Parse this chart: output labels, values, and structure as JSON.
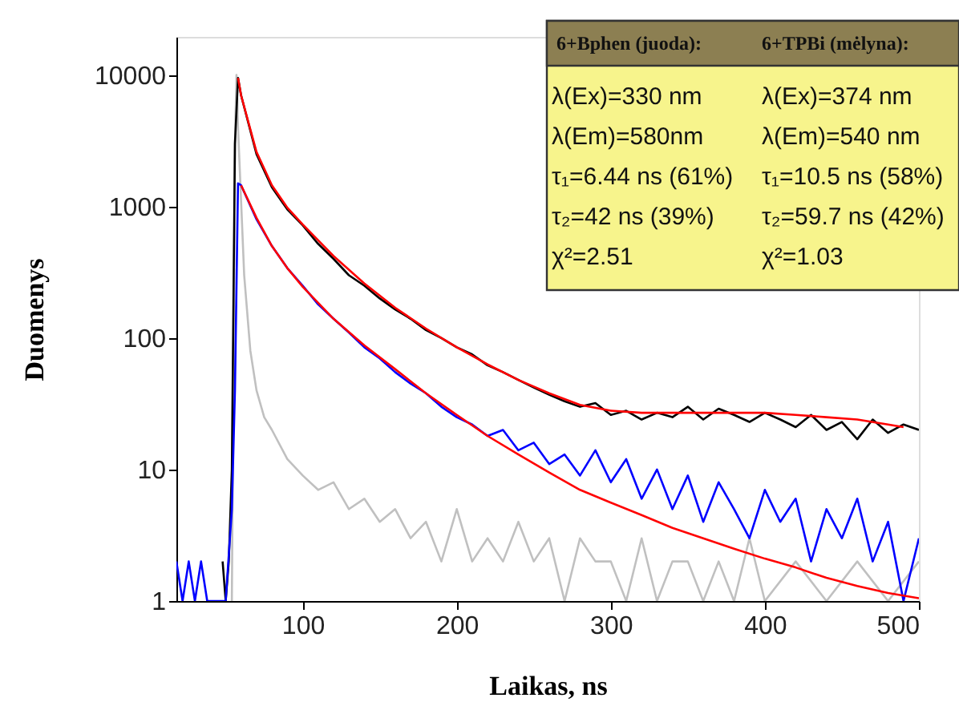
{
  "chart_data": {
    "type": "line",
    "xlabel": "Laikas, ns",
    "ylabel": "Duomenys",
    "xlim": [
      18,
      500
    ],
    "xticks": [
      100,
      200,
      300,
      400,
      500
    ],
    "ylim": [
      1,
      19500
    ],
    "yticks": [
      1,
      10,
      100,
      1000,
      10000
    ],
    "log": "y",
    "grid": false,
    "marker": "none",
    "line_style": "solid",
    "annotations": [
      "6+Bphen (juoda):",
      "6+TPBi (mėlyna):",
      "λ(Ex)=330 nm",
      "λ(Em)=580nm",
      "τ₁=6.44 ns (61%)",
      "τ₂=42 ns (39%)",
      "χ²=2.51",
      "λ(Ex)=374 nm",
      "λ(Em)=540 nm",
      "τ₁=10.5 ns (58%)",
      "τ₂=59.7 ns (42%)",
      "χ²=1.03"
    ],
    "series": [
      {
        "color": "#c0c0c0",
        "x": [
          54,
          56,
          57,
          58,
          62,
          66,
          70,
          75,
          80,
          90,
          100,
          110,
          120,
          130,
          140,
          150,
          160,
          170,
          180,
          190,
          200,
          210,
          220,
          230,
          240,
          250,
          260,
          270,
          280,
          290,
          300,
          310,
          320,
          330,
          340,
          350,
          360,
          370,
          380,
          390,
          400,
          420,
          440,
          460,
          480,
          500
        ],
        "values": [
          1,
          3000,
          10000,
          4000,
          300,
          80,
          40,
          25,
          20,
          12,
          9,
          7,
          8,
          5,
          6,
          4,
          5,
          3,
          4,
          2,
          5,
          2,
          3,
          2,
          4,
          2,
          3,
          1,
          3,
          2,
          2,
          1,
          3,
          1,
          2,
          2,
          1,
          2,
          1,
          3,
          1,
          2,
          1,
          2,
          1,
          2
        ]
      },
      {
        "color": "#000000",
        "x": [
          48,
          50,
          52,
          54,
          56,
          58,
          60,
          70,
          80,
          90,
          100,
          110,
          120,
          130,
          140,
          150,
          160,
          170,
          180,
          190,
          200,
          210,
          220,
          230,
          240,
          250,
          260,
          270,
          280,
          290,
          300,
          310,
          320,
          330,
          340,
          350,
          360,
          370,
          380,
          390,
          400,
          410,
          420,
          430,
          440,
          450,
          460,
          470,
          480,
          490,
          500
        ],
        "values": [
          2,
          1,
          2,
          10,
          3000,
          9500,
          7000,
          2500,
          1400,
          950,
          720,
          520,
          400,
          300,
          250,
          200,
          165,
          140,
          115,
          100,
          85,
          75,
          62,
          55,
          48,
          42,
          37,
          33,
          30,
          32,
          26,
          28,
          24,
          27,
          25,
          30,
          24,
          29,
          26,
          23,
          27,
          24,
          21,
          26,
          20,
          23,
          17,
          24,
          19,
          22,
          20
        ]
      },
      {
        "color": "#0000ff",
        "x": [
          18,
          22,
          26,
          30,
          34,
          38,
          42,
          46,
          50,
          54,
          56,
          58,
          60,
          70,
          80,
          90,
          100,
          110,
          120,
          130,
          140,
          150,
          160,
          170,
          180,
          190,
          200,
          210,
          220,
          230,
          240,
          250,
          260,
          270,
          280,
          290,
          300,
          310,
          320,
          330,
          340,
          350,
          360,
          370,
          380,
          390,
          400,
          410,
          420,
          430,
          440,
          450,
          460,
          470,
          480,
          490,
          500
        ],
        "values": [
          2,
          1,
          2,
          1,
          2,
          1,
          1,
          1,
          1,
          5,
          40,
          1500,
          1450,
          800,
          500,
          340,
          250,
          180,
          140,
          110,
          85,
          70,
          55,
          45,
          38,
          30,
          25,
          22,
          18,
          20,
          14,
          16,
          11,
          13,
          9,
          14,
          8,
          12,
          6,
          10,
          5,
          9,
          4,
          8,
          5,
          3,
          7,
          4,
          6,
          2,
          5,
          3,
          6,
          2,
          4,
          1,
          3
        ]
      },
      {
        "color": "#ff0000",
        "x": [
          58,
          60,
          70,
          80,
          90,
          100,
          120,
          140,
          160,
          180,
          200,
          220,
          240,
          260,
          280,
          300,
          320,
          340,
          360,
          380,
          400,
          420,
          440,
          460,
          480,
          490
        ],
        "values": [
          9500,
          7000,
          2600,
          1450,
          980,
          730,
          420,
          260,
          170,
          118,
          85,
          63,
          48,
          38,
          31,
          28,
          27,
          27,
          27,
          27,
          27,
          26,
          25,
          24,
          22,
          21
        ]
      },
      {
        "color": "#ff0000",
        "x": [
          60,
          70,
          80,
          90,
          100,
          120,
          140,
          160,
          180,
          200,
          220,
          240,
          260,
          280,
          300,
          320,
          340,
          360,
          380,
          400,
          420,
          440,
          460,
          480,
          500
        ],
        "values": [
          1450,
          820,
          500,
          340,
          245,
          140,
          88,
          58,
          38,
          26,
          18,
          13,
          9.5,
          7,
          5.6,
          4.5,
          3.6,
          3,
          2.5,
          2.1,
          1.8,
          1.5,
          1.3,
          1.15,
          1.05
        ]
      }
    ]
  }
}
